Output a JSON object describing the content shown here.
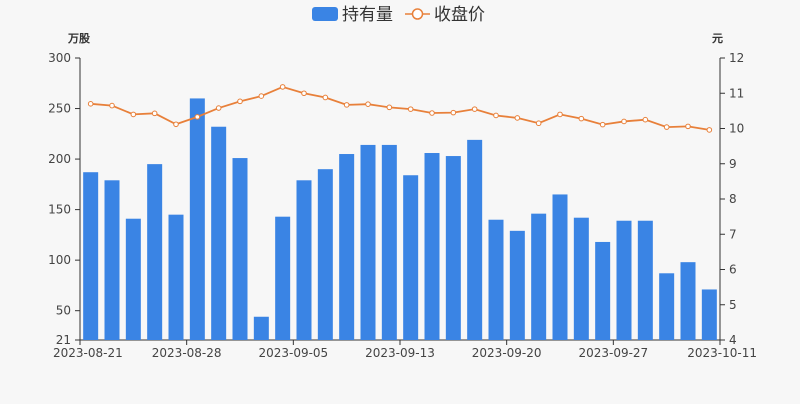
{
  "chart_data": {
    "type": "bar+line",
    "legend": {
      "bar_label": "持有量",
      "line_label": "收盘价",
      "placement": "top-center"
    },
    "y_left": {
      "unit": "万股",
      "range": [
        21,
        300
      ],
      "ticks": [
        21,
        50,
        100,
        150,
        200,
        250,
        300
      ]
    },
    "y_right": {
      "unit": "元",
      "range": [
        4,
        12
      ],
      "ticks": [
        4,
        5,
        6,
        7,
        8,
        9,
        10,
        11,
        12
      ]
    },
    "x_tick_labels": [
      "2023-08-21",
      "2023-08-28",
      "2023-09-05",
      "2023-09-13",
      "2023-09-20",
      "2023-09-27",
      "2023-10-11"
    ],
    "x_tick_indices": [
      0,
      5,
      10,
      15,
      20,
      25,
      30
    ],
    "grid": false,
    "series": [
      {
        "name": "持有量",
        "type": "bar",
        "values": [
          187,
          179,
          141,
          195,
          145,
          260,
          232,
          201,
          44,
          143,
          179,
          190,
          205,
          214,
          214,
          184,
          206,
          203,
          219,
          140,
          129,
          146,
          165,
          142,
          118,
          139,
          139,
          87,
          98,
          71
        ]
      },
      {
        "name": "收盘价",
        "type": "line",
        "values": [
          10.7,
          10.65,
          10.4,
          10.43,
          10.12,
          10.33,
          10.58,
          10.77,
          10.92,
          11.18,
          11.0,
          10.88,
          10.67,
          10.69,
          10.6,
          10.55,
          10.44,
          10.45,
          10.55,
          10.37,
          10.3,
          10.15,
          10.4,
          10.28,
          10.11,
          10.2,
          10.25,
          10.04,
          10.06,
          9.96
        ]
      }
    ],
    "colors": {
      "bar": "#3a84e4",
      "line": "#e8803a",
      "axis": "#333333",
      "text": "#444444"
    }
  }
}
